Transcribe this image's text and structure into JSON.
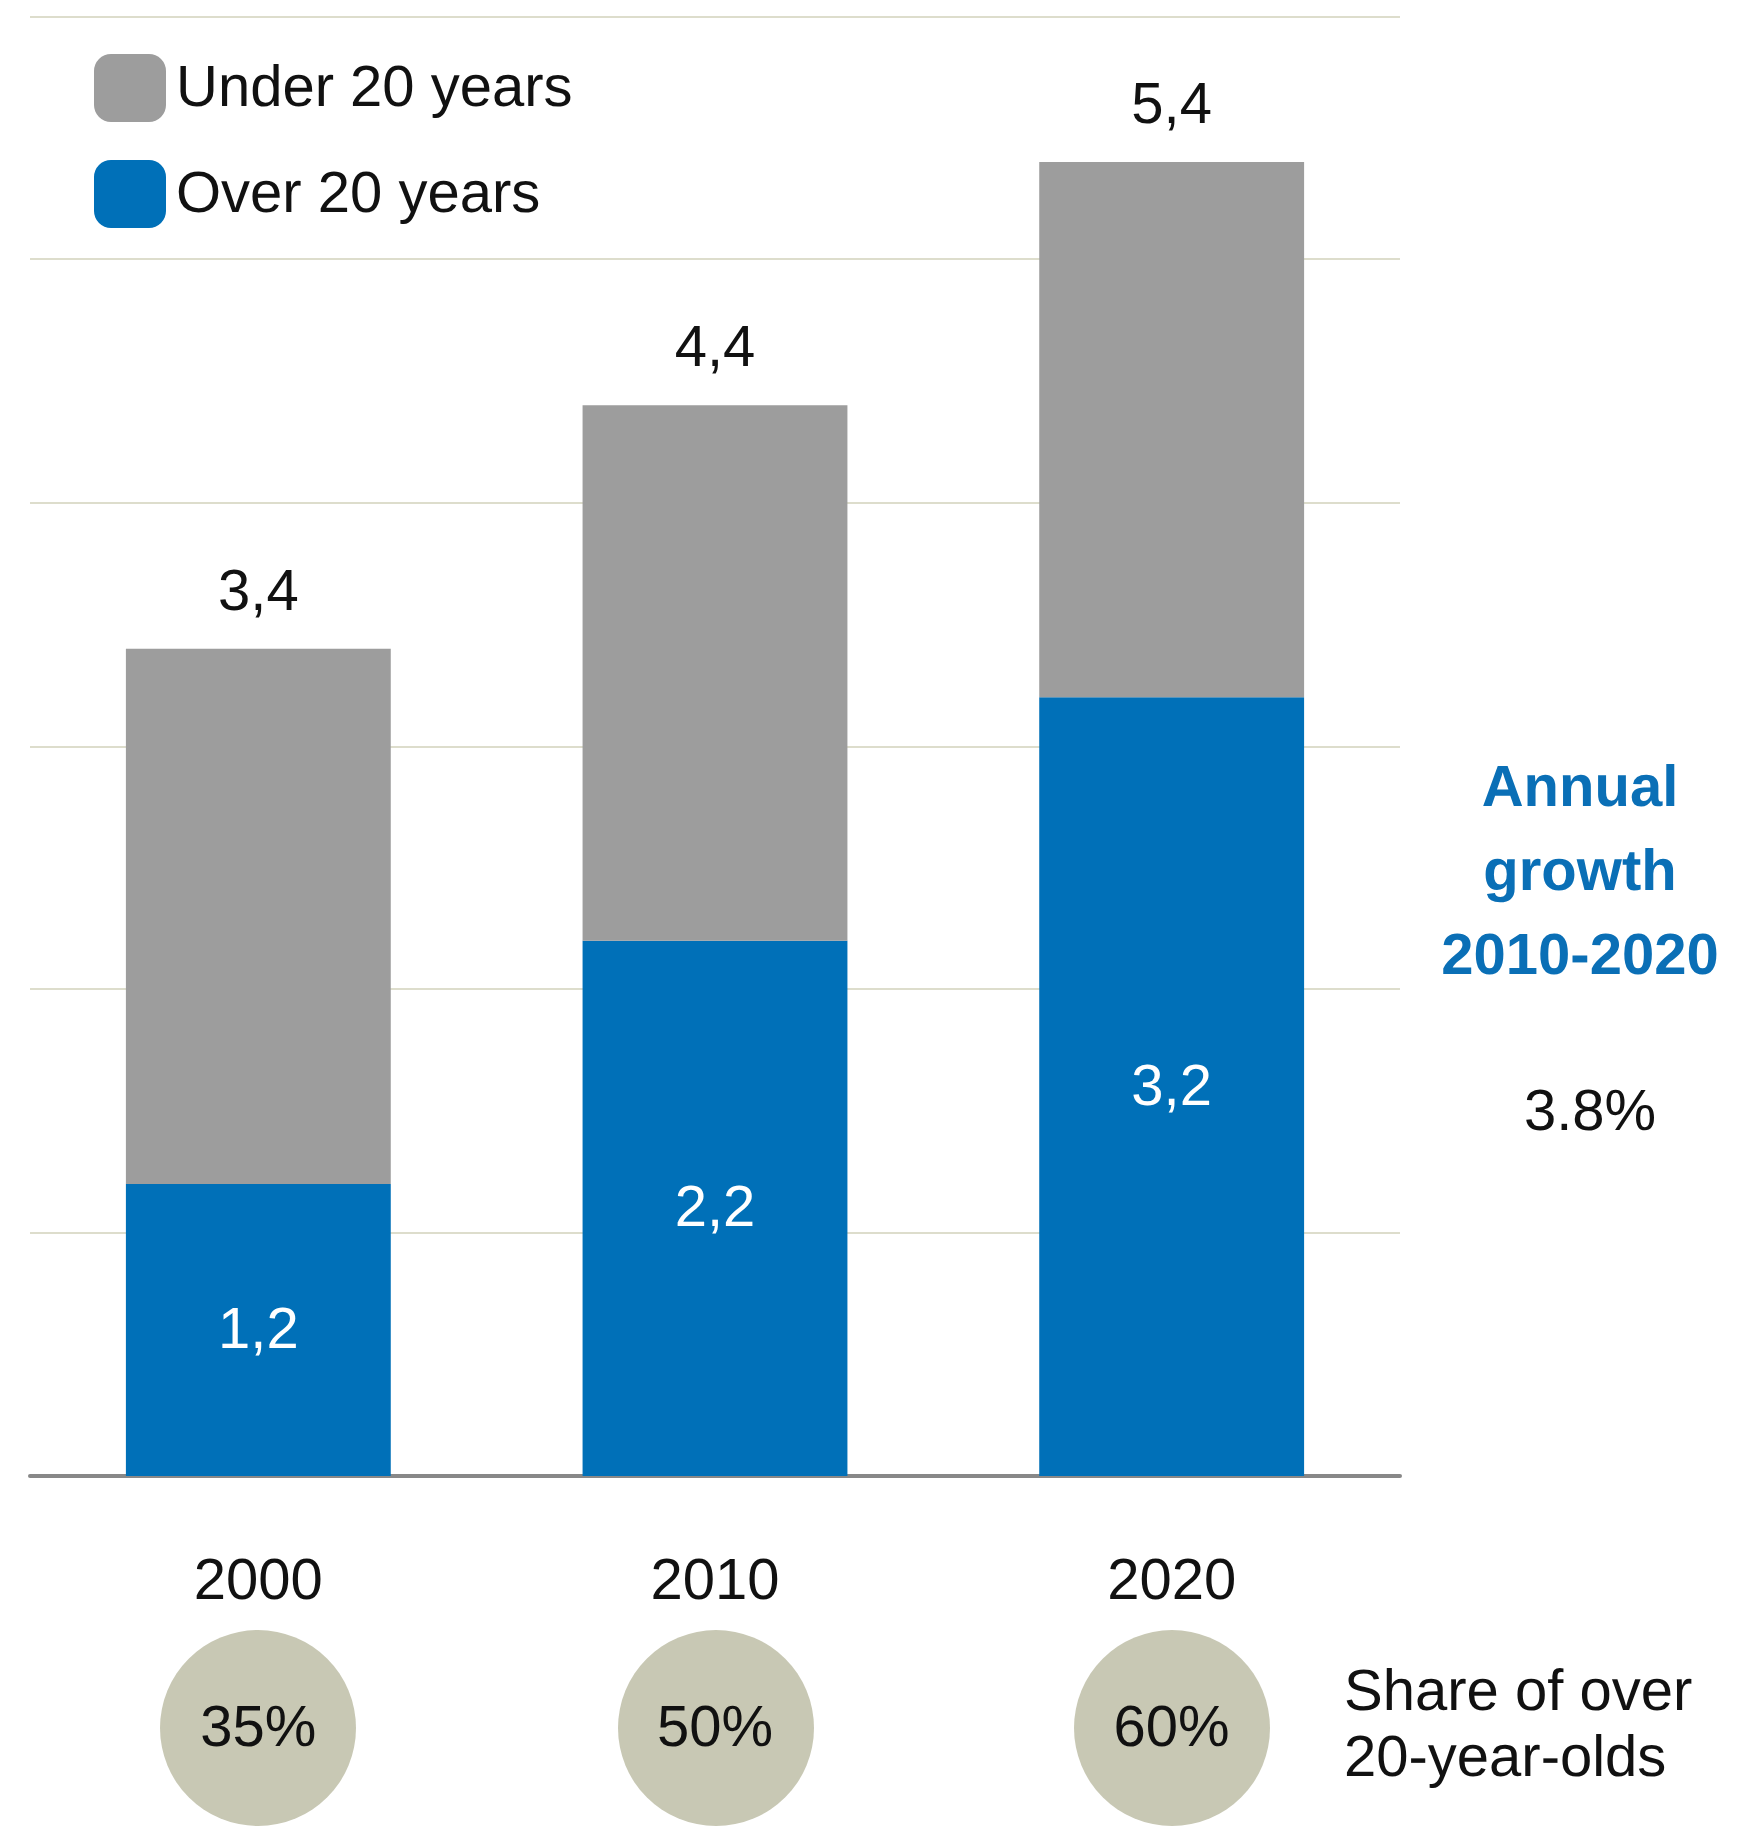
{
  "chart_data": {
    "type": "bar",
    "stacked": true,
    "categories": [
      "2000",
      "2010",
      "2020"
    ],
    "series": [
      {
        "name": "Over 20 years",
        "color": "#0070b8",
        "values": [
          1.2,
          2.2,
          3.2
        ],
        "value_labels": [
          "1,2",
          "2,2",
          "3,2"
        ]
      },
      {
        "name": "Under 20 years",
        "color": "#9d9d9d",
        "values": [
          2.2,
          2.2,
          2.2
        ]
      }
    ],
    "totals": [
      "3,4",
      "4,4",
      "5,4"
    ],
    "ylim": [
      0,
      6
    ],
    "yticks": [
      {
        "value": 0,
        "label": null
      },
      {
        "value": 1,
        "label": null
      },
      {
        "value": 2,
        "label": null
      },
      {
        "value": 3,
        "label": null
      },
      {
        "value": 4,
        "label": null
      },
      {
        "value": 5,
        "label": null
      },
      {
        "value": 6,
        "label": null
      }
    ],
    "grid": "y",
    "tick_labels": "x",
    "legend": "top left",
    "annotations": [
      "Annual growth 2010-2020",
      "3.8%",
      "Share of over 20-year-olds",
      "35%",
      "50%",
      "60%"
    ]
  }
}
